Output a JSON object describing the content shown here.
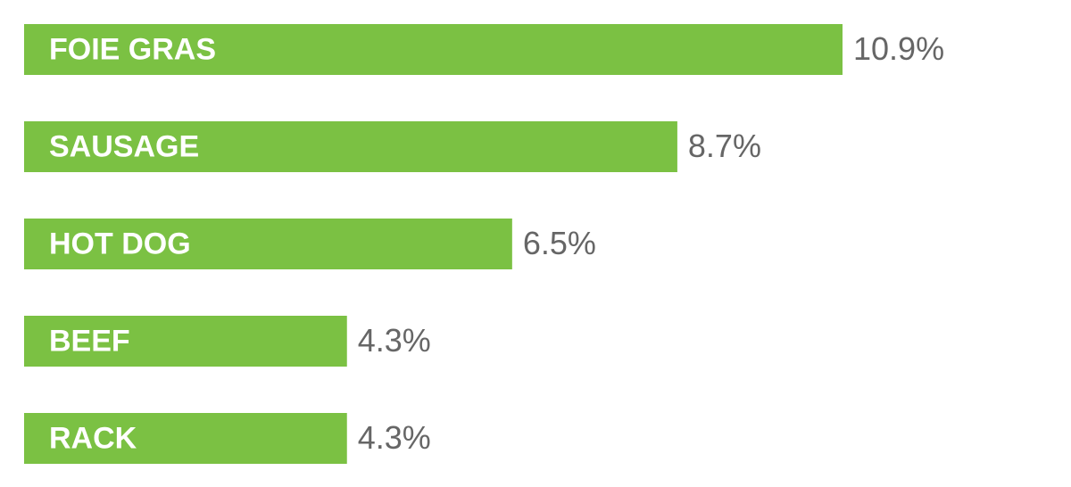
{
  "chart_data": {
    "type": "hbar",
    "categories": [
      "FOIE GRAS",
      "SAUSAGE",
      "HOT DOG",
      "BEEF",
      "RACK"
    ],
    "values": [
      10.9,
      8.7,
      6.5,
      4.3,
      4.3
    ],
    "value_labels": [
      "10.9%",
      "8.7%",
      "6.5%",
      "4.3%",
      "4.3%"
    ],
    "color": "#7bc143"
  }
}
